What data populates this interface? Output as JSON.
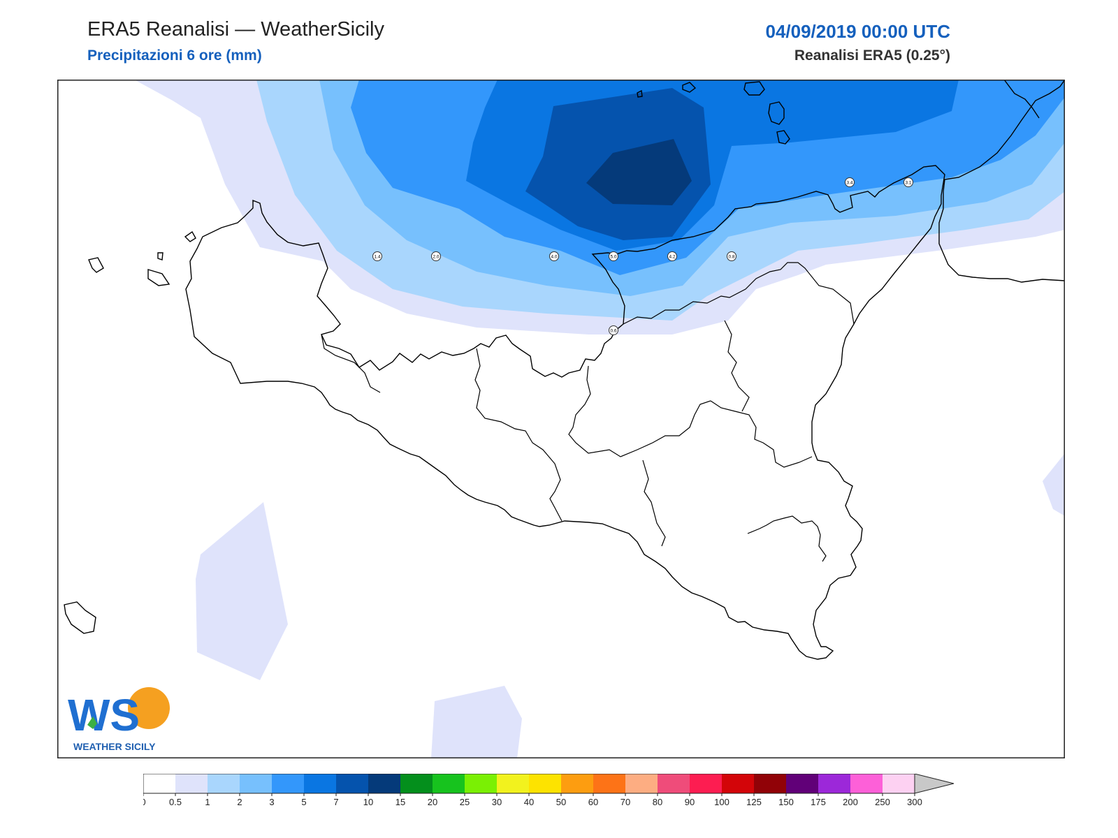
{
  "header": {
    "title": "ERA5 Reanalisi — WeatherSicily",
    "subtitle": "Precipitazioni 6 ore (mm)",
    "datetime": "04/09/2019 00:00 UTC",
    "model": "Reanalisi ERA5 (0.25°)"
  },
  "logo": {
    "text": "WEATHER SICILY",
    "mark": "WS"
  },
  "station_labels": [
    "1.4",
    "2.0",
    "4.0",
    "5.0",
    "4.2",
    "0.8",
    "0.6",
    "3.4",
    "3.1"
  ],
  "colorbar": {
    "ticks": [
      "0",
      "0.5",
      "1",
      "2",
      "3",
      "5",
      "7",
      "10",
      "15",
      "20",
      "25",
      "30",
      "40",
      "50",
      "60",
      "70",
      "80",
      "90",
      "100",
      "125",
      "150",
      "175",
      "200",
      "250",
      "300"
    ],
    "colors": [
      "#ffffff",
      "#dfe3fb",
      "#a9d6fd",
      "#77c0fd",
      "#3397fb",
      "#0a76e2",
      "#0553ad",
      "#053a7a",
      "#048f1c",
      "#17c31e",
      "#7af004",
      "#f2f21e",
      "#fde300",
      "#fd9d10",
      "#fd7317",
      "#fdad82",
      "#ef4c7a",
      "#fd1d51",
      "#d30509",
      "#910207",
      "#610078",
      "#9c28d9",
      "#fd60d8",
      "#fdd1f2"
    ],
    "over_color": "#c8c8c8"
  },
  "map_fill_colors": {
    "c05": "#dfe3fb",
    "c1": "#a9d6fd",
    "c2": "#77c0fd",
    "c3": "#3397fb",
    "c5": "#0a76e2",
    "c7": "#0553ad",
    "c10": "#053a7a"
  }
}
